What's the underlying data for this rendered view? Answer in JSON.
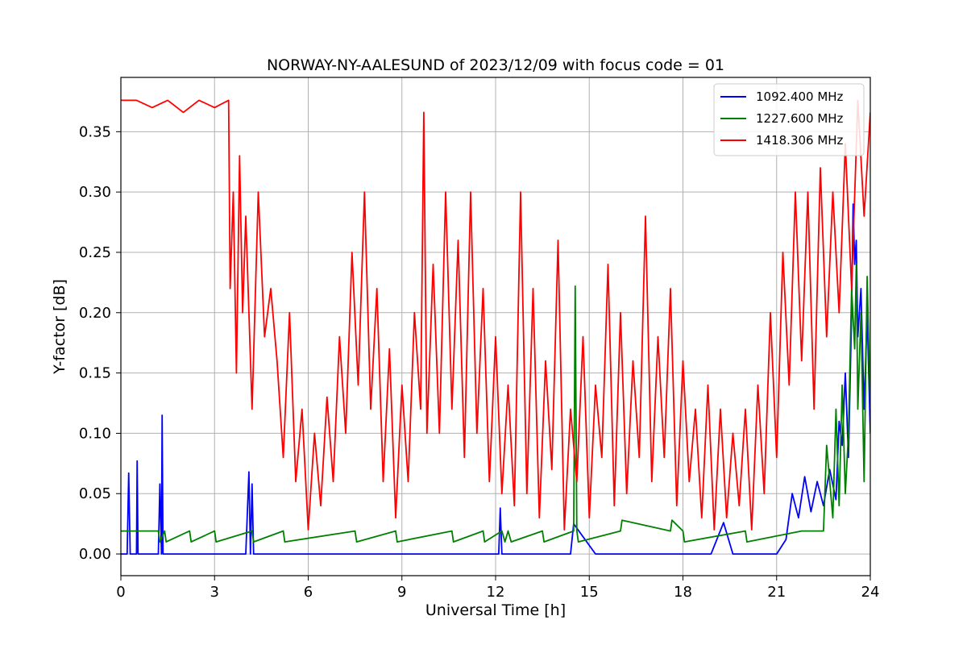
{
  "chart_data": {
    "type": "line",
    "title": "NORWAY-NY-AALESUND of 2023/12/09 with focus code = 01",
    "xlabel": "Universal Time [h]",
    "ylabel": "Y-factor [dB]",
    "xlim": [
      0,
      24
    ],
    "ylim": [
      -0.018,
      0.395
    ],
    "xticks": [
      0,
      3,
      6,
      9,
      12,
      15,
      18,
      21,
      24
    ],
    "xtick_labels": [
      "0",
      "3",
      "6",
      "9",
      "12",
      "15",
      "18",
      "21",
      "24"
    ],
    "yticks": [
      0.0,
      0.05,
      0.1,
      0.15,
      0.2,
      0.25,
      0.3,
      0.35
    ],
    "ytick_labels": [
      "0.00",
      "0.05",
      "0.10",
      "0.15",
      "0.20",
      "0.25",
      "0.30",
      "0.35"
    ],
    "grid": true,
    "legend_position": "top-right",
    "series": [
      {
        "name": "1092.400 MHz",
        "color": "#0000ff",
        "x": [
          0,
          0.2,
          0.25,
          0.3,
          0.5,
          0.52,
          0.55,
          0.6,
          1.2,
          1.25,
          1.3,
          1.32,
          1.35,
          1.4,
          2.1,
          3.6,
          4.0,
          4.1,
          4.15,
          4.2,
          4.25,
          4.3,
          4.4,
          6.0,
          6.8,
          7.5,
          8.1,
          8.5,
          9.4,
          10.5,
          11.6,
          12.1,
          12.15,
          12.2,
          12.5,
          13.2,
          14.0,
          14.4,
          14.5,
          15.2,
          16.3,
          17.1,
          17.8,
          18.3,
          18.9,
          19.3,
          19.6,
          20.4,
          20.8,
          21.0,
          21.3,
          21.5,
          21.7,
          21.9,
          22.1,
          22.3,
          22.5,
          22.7,
          22.9,
          23.0,
          23.1,
          23.2,
          23.3,
          23.4,
          23.45,
          23.5,
          23.55,
          23.6,
          23.7,
          23.8,
          23.9,
          24.0
        ],
        "values": [
          0,
          0,
          0.067,
          0,
          0,
          0.077,
          0,
          0,
          0,
          0.058,
          0,
          0.115,
          0,
          0,
          0,
          0,
          0,
          0.068,
          0,
          0.058,
          0,
          0,
          0,
          0,
          0,
          0,
          0,
          0,
          0,
          0,
          0,
          0,
          0.038,
          0,
          0,
          0,
          0,
          0,
          0.025,
          0,
          0,
          0,
          0,
          0,
          0,
          0.026,
          0,
          0,
          0,
          0,
          0.012,
          0.05,
          0.03,
          0.064,
          0.035,
          0.06,
          0.04,
          0.07,
          0.045,
          0.11,
          0.09,
          0.15,
          0.08,
          0.2,
          0.29,
          0.24,
          0.26,
          0.18,
          0.22,
          0.12,
          0.2,
          0.1
        ]
      },
      {
        "name": "1227.600 MHz",
        "color": "#008000",
        "x": [
          0,
          1.2,
          1.25,
          1.4,
          1.45,
          2.2,
          2.25,
          3.0,
          3.05,
          4.2,
          4.25,
          5.2,
          5.25,
          7.5,
          7.55,
          8.8,
          8.85,
          10.6,
          10.65,
          11.6,
          11.65,
          12.2,
          12.3,
          12.4,
          12.5,
          13.5,
          13.55,
          14.5,
          14.55,
          14.6,
          14.65,
          16.0,
          16.05,
          17.6,
          17.65,
          18.0,
          18.05,
          20.0,
          20.05,
          21.8,
          22.5,
          22.6,
          22.8,
          22.9,
          23.0,
          23.1,
          23.2,
          23.3,
          23.4,
          23.5,
          23.55,
          23.6,
          23.7,
          23.8,
          23.9,
          24.0
        ],
        "values": [
          0.019,
          0.019,
          0.01,
          0.019,
          0.01,
          0.019,
          0.01,
          0.019,
          0.01,
          0.019,
          0.01,
          0.019,
          0.01,
          0.019,
          0.01,
          0.019,
          0.01,
          0.019,
          0.01,
          0.019,
          0.01,
          0.019,
          0.01,
          0.019,
          0.01,
          0.019,
          0.01,
          0.019,
          0.222,
          0.019,
          0.01,
          0.019,
          0.028,
          0.019,
          0.028,
          0.019,
          0.01,
          0.019,
          0.01,
          0.019,
          0.019,
          0.09,
          0.03,
          0.12,
          0.04,
          0.14,
          0.05,
          0.1,
          0.22,
          0.17,
          0.24,
          0.12,
          0.2,
          0.06,
          0.23,
          0.12
        ]
      },
      {
        "name": "1418.306 MHz",
        "color": "#ff0000",
        "x": [
          0,
          0.5,
          1.0,
          1.5,
          2.0,
          2.5,
          3.0,
          3.45,
          3.5,
          3.6,
          3.7,
          3.8,
          3.9,
          4.0,
          4.2,
          4.4,
          4.6,
          4.8,
          5.0,
          5.2,
          5.4,
          5.6,
          5.8,
          6.0,
          6.2,
          6.4,
          6.6,
          6.8,
          7.0,
          7.2,
          7.4,
          7.6,
          7.8,
          8.0,
          8.2,
          8.4,
          8.6,
          8.8,
          9.0,
          9.2,
          9.4,
          9.6,
          9.7,
          9.8,
          10.0,
          10.2,
          10.4,
          10.6,
          10.8,
          11.0,
          11.2,
          11.4,
          11.6,
          11.8,
          12.0,
          12.2,
          12.4,
          12.6,
          12.8,
          13.0,
          13.2,
          13.4,
          13.6,
          13.8,
          14.0,
          14.2,
          14.4,
          14.6,
          14.8,
          15.0,
          15.2,
          15.4,
          15.6,
          15.8,
          16.0,
          16.2,
          16.4,
          16.6,
          16.8,
          17.0,
          17.2,
          17.4,
          17.6,
          17.8,
          18.0,
          18.2,
          18.4,
          18.6,
          18.8,
          19.0,
          19.2,
          19.4,
          19.6,
          19.8,
          20.0,
          20.2,
          20.4,
          20.6,
          20.8,
          21.0,
          21.2,
          21.4,
          21.6,
          21.8,
          22.0,
          22.2,
          22.4,
          22.6,
          22.8,
          23.0,
          23.2,
          23.4,
          23.6,
          23.8,
          24.0
        ],
        "values": [
          0.376,
          0.376,
          0.37,
          0.376,
          0.366,
          0.376,
          0.37,
          0.376,
          0.22,
          0.3,
          0.15,
          0.33,
          0.2,
          0.28,
          0.12,
          0.3,
          0.18,
          0.22,
          0.16,
          0.08,
          0.2,
          0.06,
          0.12,
          0.02,
          0.1,
          0.04,
          0.13,
          0.06,
          0.18,
          0.1,
          0.25,
          0.14,
          0.3,
          0.12,
          0.22,
          0.06,
          0.17,
          0.03,
          0.14,
          0.06,
          0.2,
          0.12,
          0.366,
          0.1,
          0.24,
          0.1,
          0.3,
          0.12,
          0.26,
          0.08,
          0.3,
          0.1,
          0.22,
          0.06,
          0.18,
          0.05,
          0.14,
          0.04,
          0.3,
          0.05,
          0.22,
          0.03,
          0.16,
          0.07,
          0.26,
          0.02,
          0.12,
          0.06,
          0.18,
          0.03,
          0.14,
          0.08,
          0.24,
          0.04,
          0.2,
          0.05,
          0.16,
          0.08,
          0.28,
          0.06,
          0.18,
          0.08,
          0.22,
          0.04,
          0.16,
          0.06,
          0.12,
          0.03,
          0.14,
          0.02,
          0.12,
          0.03,
          0.1,
          0.04,
          0.12,
          0.02,
          0.14,
          0.05,
          0.2,
          0.08,
          0.25,
          0.14,
          0.3,
          0.16,
          0.3,
          0.12,
          0.32,
          0.18,
          0.3,
          0.2,
          0.34,
          0.22,
          0.376,
          0.28,
          0.366
        ]
      }
    ]
  }
}
